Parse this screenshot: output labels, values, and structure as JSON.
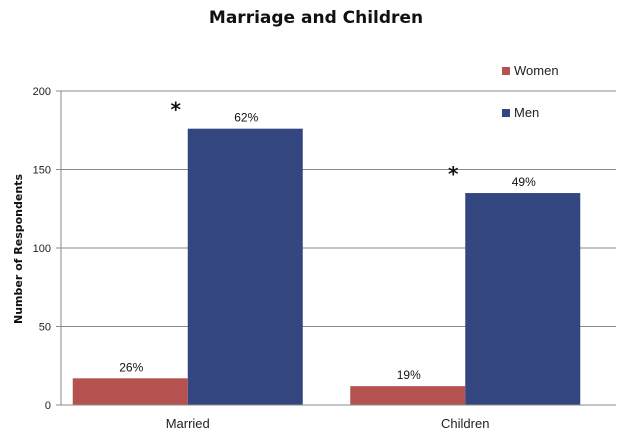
{
  "chart_data": {
    "type": "bar",
    "title": "Marriage and Children",
    "ylabel": "Number of Respondents",
    "xlabel": "",
    "ylim": [
      0,
      200
    ],
    "yticks": [
      0,
      50,
      100,
      150,
      200
    ],
    "grid": true,
    "legend_position": "top-right",
    "categories": [
      "Married",
      "Children"
    ],
    "series": [
      {
        "name": "Women",
        "color": "#b5514e",
        "values": [
          17,
          12
        ],
        "labels": [
          "26%",
          "19%"
        ]
      },
      {
        "name": "Men",
        "color": "#344680",
        "values": [
          176,
          135
        ],
        "labels": [
          "62%",
          "49%"
        ]
      }
    ],
    "annotations": [
      {
        "text": "*",
        "category": "Married",
        "series": "Men"
      },
      {
        "text": "*",
        "category": "Children",
        "series": "Men"
      }
    ]
  }
}
